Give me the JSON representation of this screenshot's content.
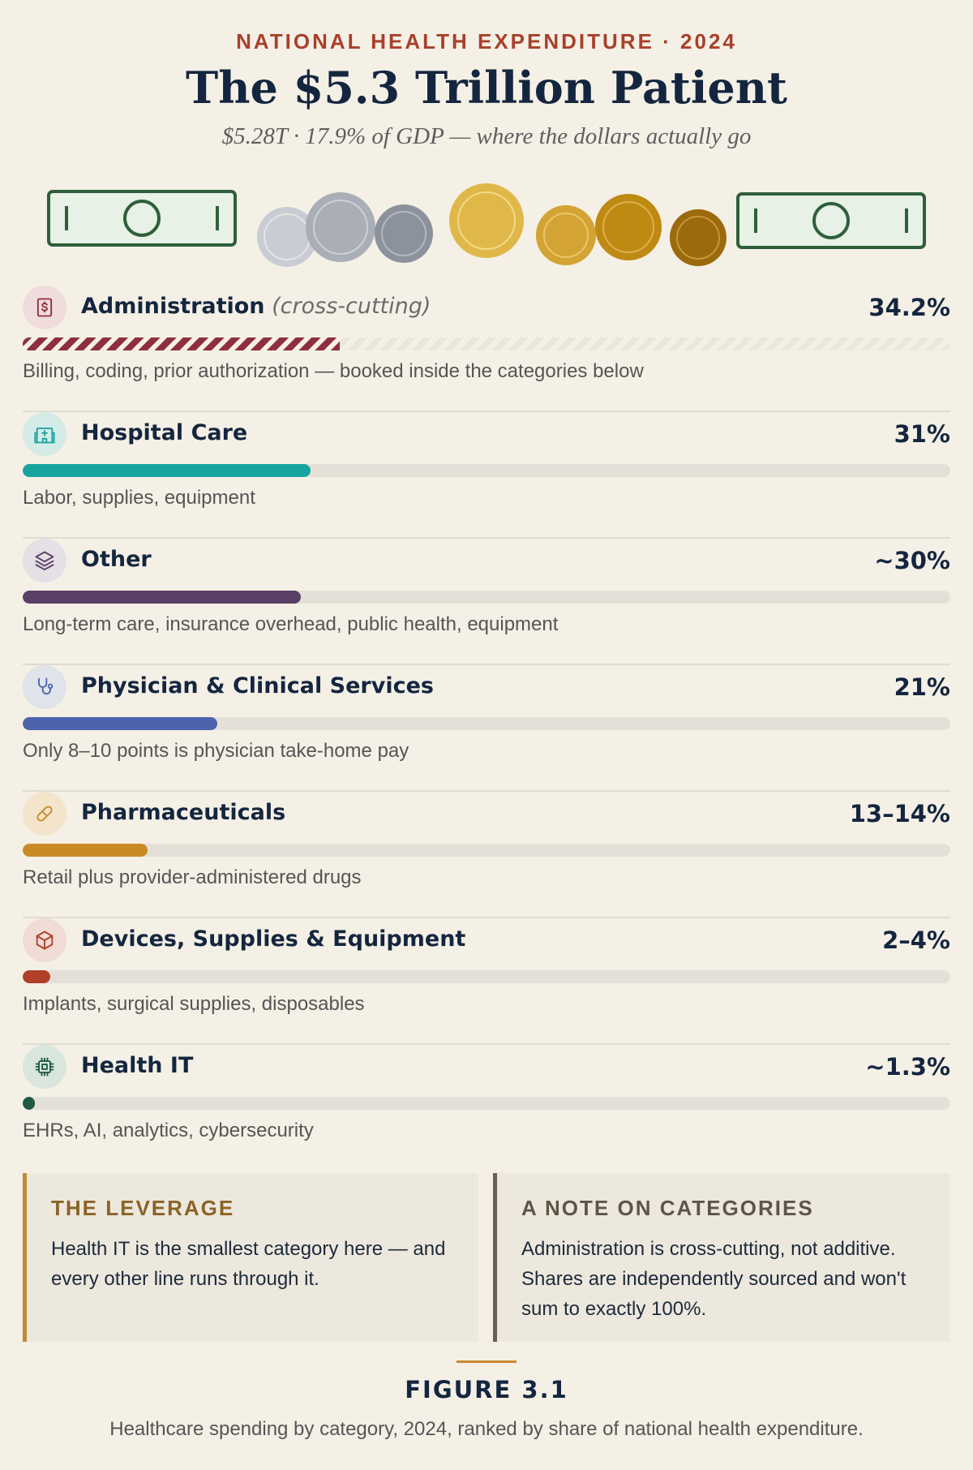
{
  "header": {
    "kicker": "NATIONAL HEALTH EXPENDITURE · 2024",
    "title": "The $5.3 Trillion Patient",
    "subtitle": "$5.28T · 17.9% of GDP — where the dollars actually go"
  },
  "colors": {
    "background": "#f5f0e6",
    "navy": "#14263f",
    "accent_red": "#a8402a"
  },
  "chart_data": {
    "type": "bar",
    "orientation": "horizontal",
    "xlim": [
      0,
      100
    ],
    "unit": "percent",
    "categories": [
      {
        "name": "Administration",
        "qualifier": "(cross-cutting)",
        "value_label": "34.2%",
        "value": 34.2,
        "description": "Billing, coding, prior authorization — booked inside the categories below",
        "color": "#8e2f3c",
        "icon": "receipt-dollar-icon",
        "icon_bg": "#f0dcdc",
        "hatched": true
      },
      {
        "name": "Hospital Care",
        "qualifier": "",
        "value_label": "31%",
        "value": 31,
        "description": "Labor, supplies, equipment",
        "color": "#17a3a0",
        "icon": "hospital-icon",
        "icon_bg": "#d4ebe7",
        "hatched": false
      },
      {
        "name": "Other",
        "qualifier": "",
        "value_label": "~30%",
        "value": 30,
        "description": "Long-term care, insurance overhead, public health, equipment",
        "color": "#5a3f66",
        "icon": "layers-icon",
        "icon_bg": "#e5dfe6",
        "hatched": false
      },
      {
        "name": "Physician & Clinical Services",
        "qualifier": "",
        "value_label": "21%",
        "value": 21,
        "description": "Only 8–10 points is physician take-home pay",
        "color": "#4e63ad",
        "icon": "stethoscope-icon",
        "icon_bg": "#e1e3ea",
        "hatched": false
      },
      {
        "name": "Pharmaceuticals",
        "qualifier": "",
        "value_label": "13–14%",
        "value": 13.5,
        "description": "Retail plus provider-administered drugs",
        "color": "#c98a25",
        "icon": "pill-icon",
        "icon_bg": "#f4e4cc",
        "hatched": false
      },
      {
        "name": "Devices, Supplies & Equipment",
        "qualifier": "",
        "value_label": "2–4%",
        "value": 3,
        "description": "Implants, surgical supplies, disposables",
        "color": "#b04028",
        "icon": "box-icon",
        "icon_bg": "#f0dcd5",
        "hatched": false
      },
      {
        "name": "Health IT",
        "qualifier": "",
        "value_label": "~1.3%",
        "value": 1.3,
        "description": "EHRs, AI, analytics, cybersecurity",
        "color": "#1e5a44",
        "icon": "chip-icon",
        "icon_bg": "#d9e6dd",
        "hatched": false
      }
    ]
  },
  "panels": {
    "left": {
      "title": "THE LEVERAGE",
      "text": "Health IT is the smallest category here — and every other line runs through it."
    },
    "right": {
      "title": "A NOTE ON CATEGORIES",
      "text": "Administration is cross-cutting, not additive. Shares are independently sourced and won't sum to exactly 100%."
    }
  },
  "figure": {
    "label": "FIGURE 3.1",
    "caption": "Healthcare spending by category, 2024, ranked by share of national health expenditure."
  }
}
